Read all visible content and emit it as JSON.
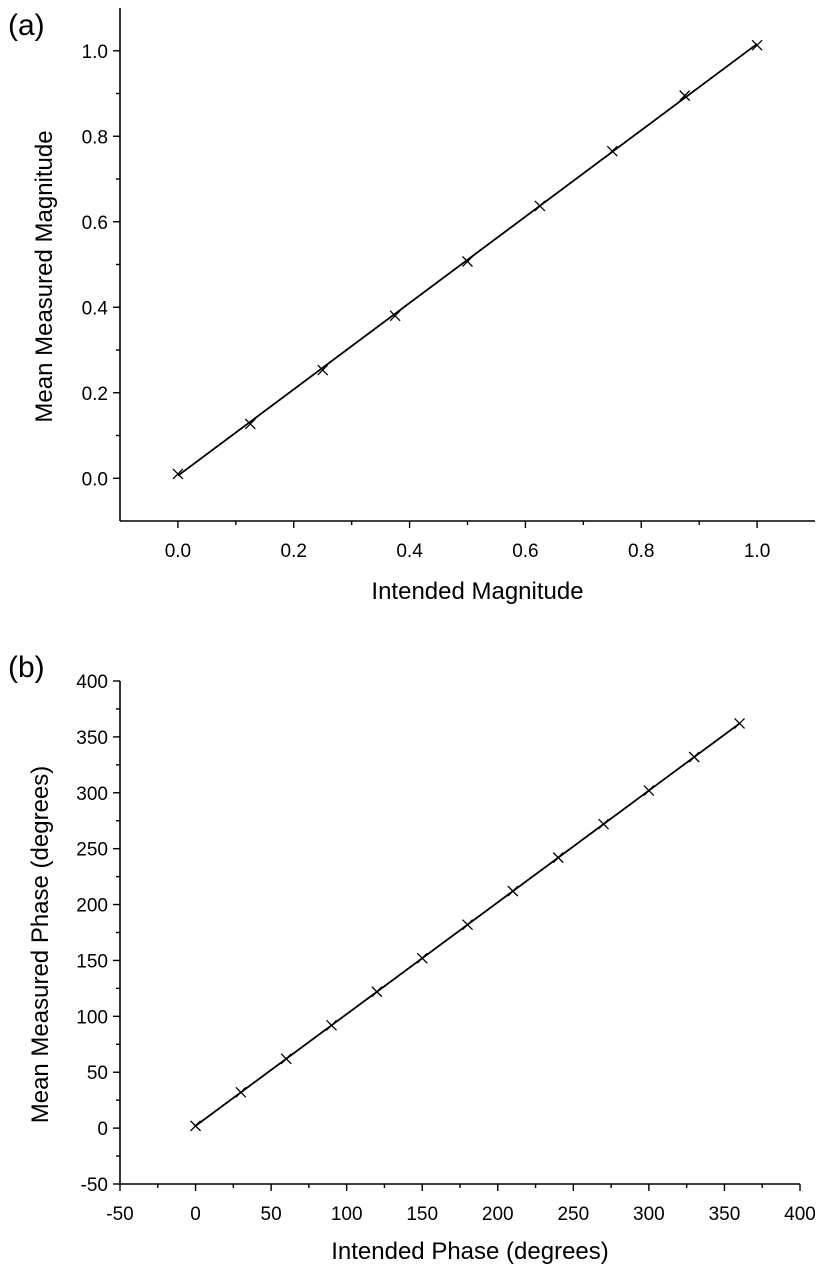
{
  "chart_data": [
    {
      "type": "scatter",
      "panel_label": "(a)",
      "xlabel": "Intended Magnitude",
      "ylabel": "Mean Measured Magnitude",
      "xlim": [
        -0.1,
        1.1
      ],
      "ylim": [
        -0.1,
        1.1
      ],
      "x_ticks": [
        0.0,
        0.2,
        0.4,
        0.6,
        0.8,
        1.0
      ],
      "x_tick_labels": [
        "0.0",
        "0.2",
        "0.4",
        "0.6",
        "0.8",
        "1.0"
      ],
      "y_ticks": [
        0.0,
        0.2,
        0.4,
        0.6,
        0.8,
        1.0
      ],
      "y_tick_labels": [
        "0.0",
        "0.2",
        "0.4",
        "0.6",
        "0.8",
        "1.0"
      ],
      "marker": "x",
      "grid": false,
      "x": [
        0.0,
        0.125,
        0.25,
        0.375,
        0.5,
        0.625,
        0.75,
        0.875,
        1.0
      ],
      "y": [
        0.01,
        0.127,
        0.253,
        0.38,
        0.507,
        0.637,
        0.765,
        0.895,
        1.013
      ],
      "fit_line": {
        "x": [
          0.0,
          1.0
        ],
        "y": [
          0.006,
          1.016
        ]
      }
    },
    {
      "type": "scatter",
      "panel_label": "(b)",
      "xlabel": "Intended Phase (degrees)",
      "ylabel": "Mean Measured Phase (degrees)",
      "xlim": [
        -50,
        400
      ],
      "ylim": [
        -50,
        400
      ],
      "x_ticks": [
        -50,
        0,
        50,
        100,
        150,
        200,
        250,
        300,
        350,
        400
      ],
      "x_tick_labels": [
        "-50",
        "0",
        "50",
        "100",
        "150",
        "200",
        "250",
        "300",
        "350",
        "400"
      ],
      "y_ticks": [
        -50,
        0,
        50,
        100,
        150,
        200,
        250,
        300,
        350,
        400
      ],
      "y_tick_labels": [
        "-50",
        "0",
        "50",
        "100",
        "150",
        "200",
        "250",
        "300",
        "350",
        "400"
      ],
      "marker": "x",
      "grid": false,
      "x": [
        0,
        30,
        60,
        90,
        120,
        150,
        180,
        210,
        240,
        270,
        300,
        330,
        360
      ],
      "y": [
        2,
        32,
        62,
        92,
        122,
        152,
        182,
        212,
        242,
        272,
        302,
        332,
        362
      ],
      "fit_line": {
        "x": [
          0,
          360
        ],
        "y": [
          2,
          362
        ]
      }
    }
  ]
}
